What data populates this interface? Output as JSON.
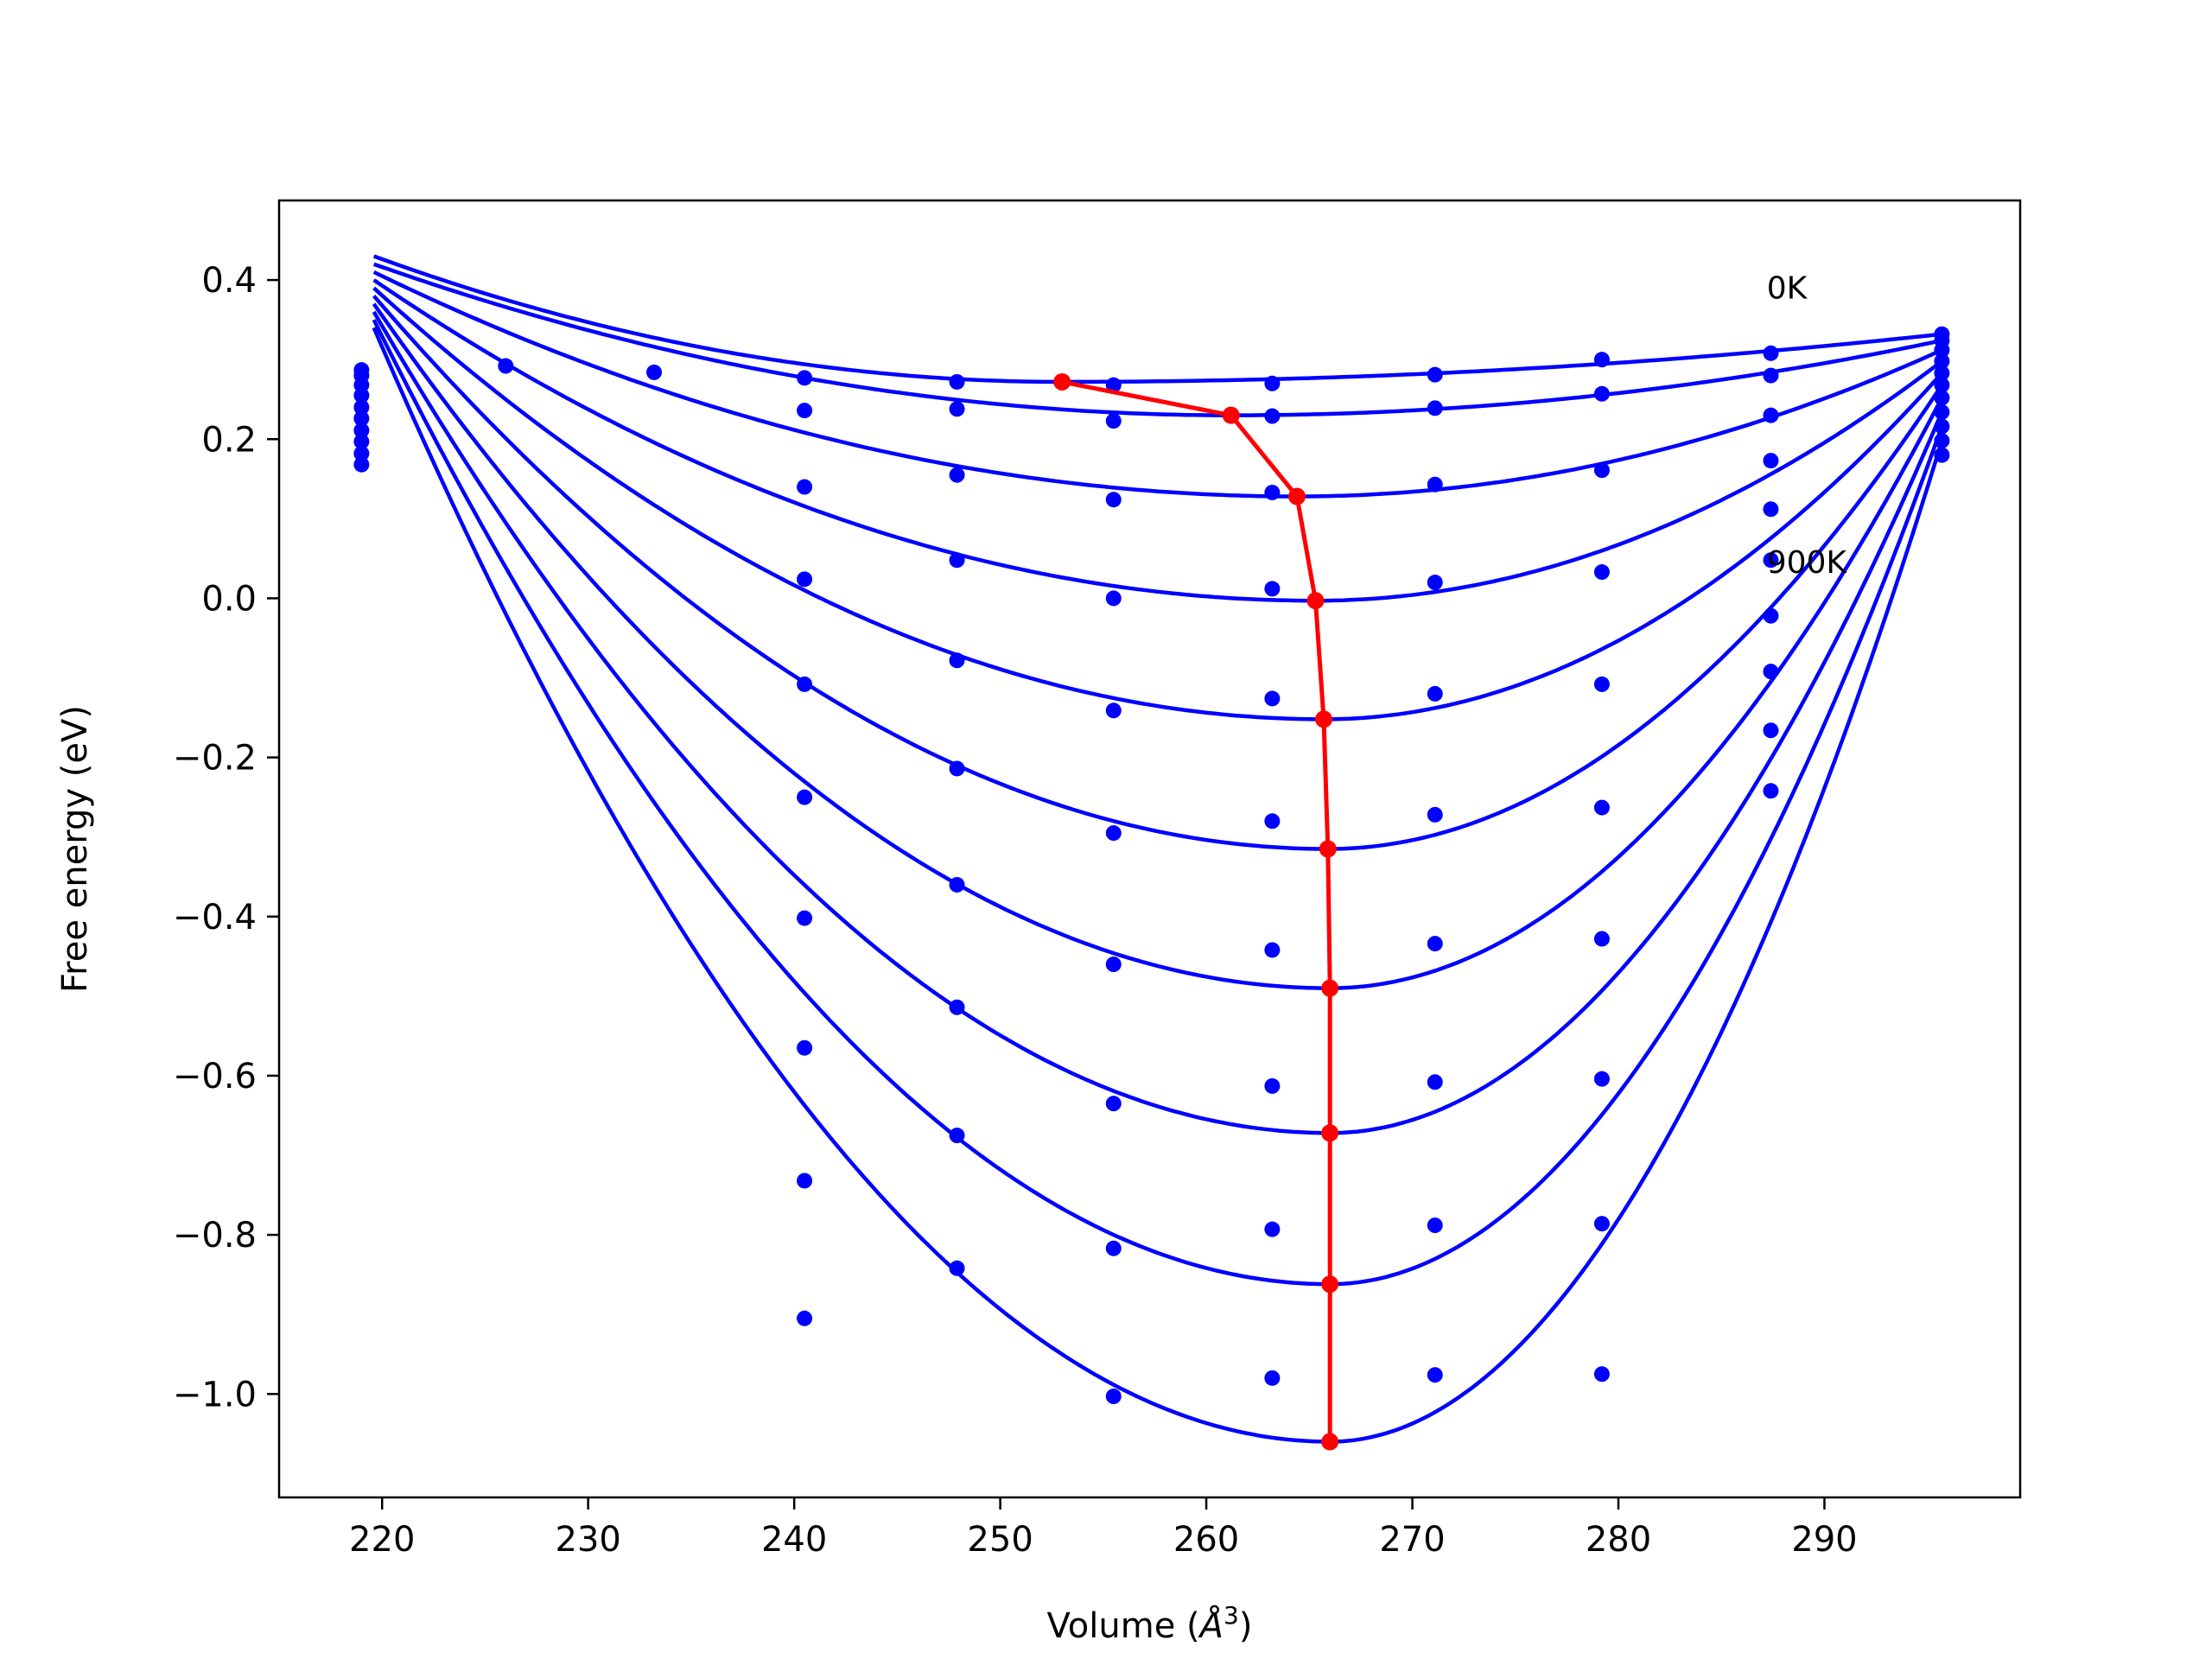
{
  "chart_data": {
    "type": "line",
    "title": "",
    "xlabel": "Volume (",
    "xlabel_unit": "Å",
    "xlabel_sup": "3",
    "xlabel_end": ")",
    "ylabel": "Free energy (eV)",
    "xlim": [
      215,
      299.5
    ],
    "ylim": [
      -1.13,
      0.5
    ],
    "xticks": [
      220,
      230,
      240,
      250,
      260,
      270,
      280,
      290
    ],
    "yticks": [
      0.4,
      0.2,
      0.0,
      -0.2,
      -0.4,
      -0.6,
      -0.8,
      -1.0
    ],
    "ytick_labels": [
      "0.4",
      "0.2",
      "0.0",
      "−0.2",
      "−0.4",
      "−0.6",
      "−0.8",
      "−1.0"
    ],
    "grid": false,
    "annotations": [
      {
        "text": "0K",
        "x": 287.2,
        "y": 0.39
      },
      {
        "text": "900K",
        "x": 287.2,
        "y": 0.045
      }
    ],
    "colors": {
      "curves": "#0000ff",
      "points": "#0000ff",
      "minimum_path": "#ff0000"
    },
    "fit_curves": [
      {
        "v0": 253.0,
        "f0": 0.272
      },
      {
        "v0": 261.2,
        "f0": 0.23
      },
      {
        "v0": 264.4,
        "f0": 0.128
      },
      {
        "v0": 265.3,
        "f0": -0.003
      },
      {
        "v0": 265.7,
        "f0": -0.152
      },
      {
        "v0": 265.9,
        "f0": -0.315
      },
      {
        "v0": 266.0,
        "f0": -0.49
      },
      {
        "v0": 266.0,
        "f0": -0.672
      },
      {
        "v0": 266.0,
        "f0": -0.862
      },
      {
        "v0": 266.0,
        "f0": -1.06
      }
    ],
    "volumes": [
      240.5,
      247.9,
      255.5,
      263.2,
      271.1,
      279.2,
      287.4
    ],
    "points": [
      [
        0.277,
        0.272,
        0.268,
        0.27,
        0.281,
        0.3,
        0.308
      ],
      [
        0.236,
        0.238,
        0.223,
        0.229,
        0.239,
        0.257,
        0.28
      ],
      [
        0.14,
        0.155,
        0.124,
        0.133,
        0.143,
        0.161,
        0.23
      ],
      [
        0.024,
        0.048,
        0.0,
        0.012,
        0.02,
        0.033,
        0.173
      ],
      [
        -0.108,
        -0.078,
        -0.141,
        -0.126,
        -0.12,
        -0.108,
        0.112
      ],
      [
        -0.25,
        -0.214,
        -0.295,
        -0.28,
        -0.272,
        -0.263,
        0.048
      ],
      [
        -0.402,
        -0.36,
        -0.46,
        -0.442,
        -0.434,
        -0.428,
        -0.022
      ],
      [
        -0.565,
        -0.514,
        -0.635,
        -0.613,
        -0.608,
        -0.604,
        -0.092
      ],
      [
        -0.732,
        -0.675,
        -0.817,
        -0.793,
        -0.788,
        -0.786,
        -0.166
      ],
      [
        -0.905,
        -0.842,
        -1.003,
        -0.98,
        -0.976,
        -0.975,
        -0.242
      ]
    ],
    "extra_points": [
      {
        "x": 226.0,
        "y": 0.292
      },
      {
        "x": 233.2,
        "y": 0.284
      }
    ],
    "left_edge_points": {
      "x": 219.0,
      "y": [
        0.168,
        0.182,
        0.197,
        0.211,
        0.226,
        0.24,
        0.255,
        0.268,
        0.28,
        0.287
      ]
    },
    "right_edge_points": {
      "x": 295.7,
      "y": [
        0.18,
        0.198,
        0.216,
        0.234,
        0.252,
        0.268,
        0.283,
        0.298,
        0.312,
        0.324,
        0.332
      ]
    },
    "minimum_path": {
      "x": [
        253.0,
        261.2,
        264.4,
        265.3,
        265.7,
        265.9,
        266.0,
        266.0,
        266.0,
        266.0
      ],
      "y": [
        0.272,
        0.23,
        0.128,
        -0.003,
        -0.152,
        -0.315,
        -0.49,
        -0.672,
        -0.862,
        -1.06
      ]
    }
  }
}
